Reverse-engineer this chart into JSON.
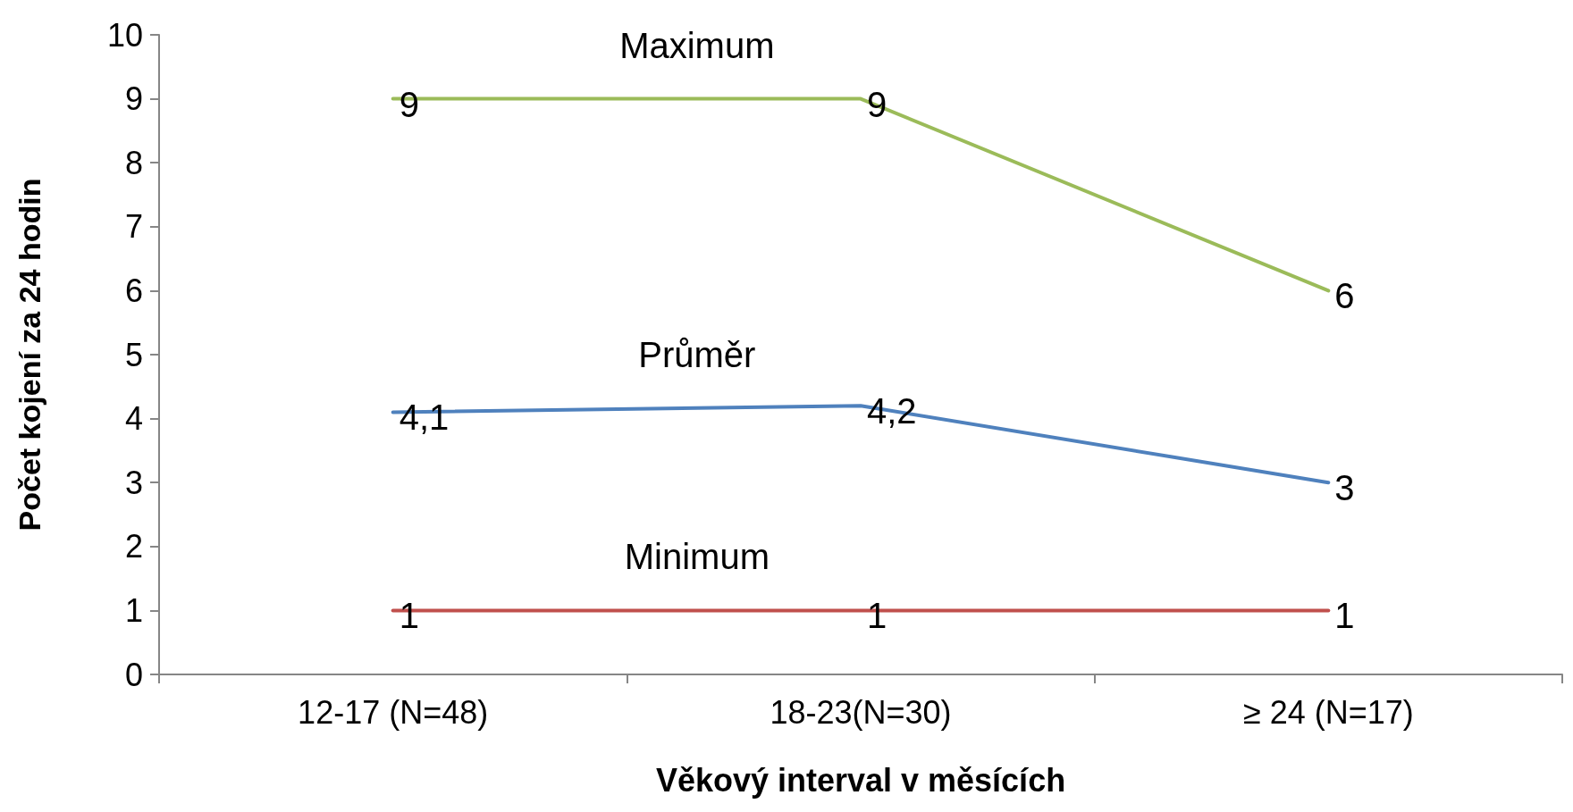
{
  "chart_data": {
    "type": "line",
    "xlabel": "Věkový interval v měsících",
    "ylabel": "Počet kojení za 24 hodin",
    "categories": [
      "12-17 (N=48)",
      "18-23(N=30)",
      "≥ 24 (N=17)"
    ],
    "series": [
      {
        "name": "Maximum",
        "color": "#9bbb59",
        "values": [
          9,
          9,
          6
        ],
        "value_labels": [
          "9",
          "9",
          "6"
        ]
      },
      {
        "name": "Průměr",
        "color": "#4f81bd",
        "values": [
          4.1,
          4.2,
          3
        ],
        "value_labels": [
          "4,1",
          "4,2",
          "3"
        ]
      },
      {
        "name": "Minimum",
        "color": "#c0504d",
        "values": [
          1,
          1,
          1
        ],
        "value_labels": [
          "1",
          "1",
          "1"
        ]
      }
    ],
    "ylim": [
      0,
      10
    ],
    "yticks": [
      0,
      1,
      2,
      3,
      4,
      5,
      6,
      7,
      8,
      9,
      10
    ],
    "grid": false,
    "legend": false,
    "marker": "none",
    "line_style": "solid"
  }
}
